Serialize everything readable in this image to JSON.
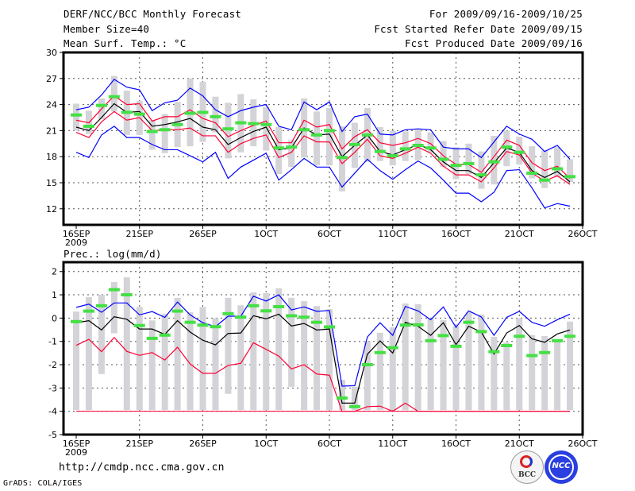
{
  "header": {
    "title": "DERF/NCC/BCC Monthly Forecast",
    "member_size": "Member Size=40",
    "variable": "Mean Surf. Temp.: °C",
    "period": "For 2009/09/16-2009/10/25",
    "start_date": "Fcst Started Refer Date 2009/09/15",
    "produced_date": "Fcst Produced Date 2009/09/16"
  },
  "footer": {
    "url": "http://cmdp.ncc.cma.gov.cn",
    "credit": "GrADS: COLA/IGES"
  },
  "logos": {
    "bcc": "BCC",
    "ncc": "NCC"
  },
  "colors": {
    "max_min": "#0000ff",
    "spread": "#ff0033",
    "mean": "#000000",
    "obs": "#44e044",
    "bars": "#d3d3d8"
  },
  "chart_data": [
    {
      "type": "line",
      "title": "Mean Surf. Temp.: °C",
      "xlabel": "",
      "ylabel": "",
      "ylim": [
        10.15,
        30
      ],
      "yticks": [
        12,
        15,
        18,
        21,
        24,
        27,
        30
      ],
      "xticks": [
        "16SEP",
        "21SEP",
        "26SEP",
        "1OCT",
        "6OCT",
        "11OCT",
        "16OCT",
        "21OCT",
        "26OCT"
      ],
      "xtick_year": "2009",
      "days": 40,
      "grid": true,
      "series": [
        {
          "name": "ensemble max",
          "color": "#0000ff",
          "values": [
            23.4,
            23.7,
            25.1,
            26.9,
            26.0,
            25.7,
            23.3,
            24.2,
            24.5,
            25.9,
            25.0,
            23.4,
            22.6,
            23.3,
            23.7,
            24.0,
            21.5,
            21.1,
            24.3,
            23.4,
            24.3,
            20.9,
            22.6,
            22.9,
            20.6,
            20.5,
            21.1,
            21.2,
            21.1,
            19.1,
            18.9,
            18.9,
            17.9,
            19.7,
            21.5,
            20.6,
            20.0,
            18.6,
            19.3,
            17.7
          ]
        },
        {
          "name": "ensemble min",
          "color": "#0000ff",
          "values": [
            18.5,
            17.9,
            20.5,
            21.5,
            20.2,
            20.2,
            19.4,
            18.8,
            18.8,
            18.1,
            17.4,
            18.5,
            15.5,
            16.8,
            17.6,
            18.4,
            15.3,
            16.5,
            17.8,
            16.8,
            16.8,
            14.5,
            16.1,
            17.7,
            16.4,
            15.4,
            16.5,
            17.5,
            16.7,
            15.3,
            13.8,
            13.8,
            12.8,
            13.9,
            16.4,
            16.5,
            14.4,
            12.1,
            12.6,
            12.3
          ]
        },
        {
          "name": "spread upper",
          "color": "#ff0033",
          "values": [
            22.2,
            21.9,
            23.5,
            25.0,
            24.0,
            24.1,
            22.1,
            22.6,
            22.6,
            23.4,
            22.4,
            21.9,
            20.3,
            21.0,
            21.6,
            22.1,
            19.6,
            19.6,
            22.2,
            21.4,
            21.7,
            18.9,
            20.3,
            21.1,
            19.6,
            19.3,
            19.6,
            20.1,
            19.5,
            18.1,
            17.1,
            17.1,
            16.2,
            18.0,
            19.9,
            19.3,
            17.3,
            16.4,
            16.9,
            15.5
          ]
        },
        {
          "name": "spread lower",
          "color": "#ff0033",
          "values": [
            20.8,
            20.2,
            22.0,
            23.2,
            22.2,
            22.5,
            21.0,
            21.1,
            21.1,
            21.3,
            20.4,
            20.4,
            18.5,
            19.5,
            20.1,
            20.5,
            17.9,
            18.5,
            20.4,
            19.7,
            19.7,
            17.2,
            18.5,
            20.0,
            18.1,
            17.8,
            18.4,
            19.1,
            18.4,
            16.9,
            15.9,
            15.9,
            15.1,
            16.7,
            18.6,
            18.2,
            16.1,
            15.2,
            15.8,
            14.8
          ]
        },
        {
          "name": "ensemble mean",
          "color": "#000000",
          "values": [
            21.4,
            21.0,
            22.5,
            24.1,
            23.1,
            23.2,
            21.5,
            21.7,
            22.0,
            22.4,
            21.4,
            21.1,
            19.4,
            20.2,
            20.9,
            21.4,
            18.8,
            19.0,
            21.3,
            20.5,
            20.6,
            18.0,
            19.3,
            20.5,
            18.6,
            18.2,
            18.8,
            19.4,
            18.8,
            17.4,
            16.4,
            16.4,
            15.6,
            17.3,
            19.0,
            18.5,
            16.4,
            15.6,
            16.3,
            15.1
          ]
        }
      ],
      "observed": [
        22.8,
        21.5,
        23.9,
        24.9,
        23.1,
        22.9,
        20.9,
        21.1,
        21.7,
        23.0,
        23.1,
        22.6,
        21.2,
        21.9,
        21.8,
        21.7,
        19.0,
        19.1,
        21.1,
        20.5,
        21.0,
        17.9,
        19.4,
        20.5,
        18.6,
        18.1,
        18.9,
        19.3,
        19.0,
        17.7,
        17.0,
        17.2,
        15.9,
        17.4,
        19.1,
        18.5,
        16.1,
        15.3,
        16.6,
        15.7
      ],
      "bars": [
        [
          21,
          24.1
        ],
        [
          20.6,
          23.3
        ],
        [
          22.3,
          24.7
        ],
        [
          23.2,
          27.3
        ],
        [
          20.5,
          25.6
        ],
        [
          20.5,
          24.4
        ],
        [
          18.8,
          22.2
        ],
        [
          18.4,
          22.9
        ],
        [
          19.1,
          24.3
        ],
        [
          19.2,
          27
        ],
        [
          19.7,
          26.6
        ],
        [
          20.8,
          24.9
        ],
        [
          17.8,
          24.2
        ],
        [
          18.5,
          25.2
        ],
        [
          19.2,
          24.6
        ],
        [
          18.7,
          23.7
        ],
        [
          16,
          21.4
        ],
        [
          16.8,
          19.9
        ],
        [
          17.9,
          24.7
        ],
        [
          17,
          23.2
        ],
        [
          17,
          23.6
        ],
        [
          14,
          21.5
        ],
        [
          16.7,
          21.9
        ],
        [
          17.4,
          23.6
        ],
        [
          17.5,
          21.4
        ],
        [
          17,
          21
        ],
        [
          17.5,
          20.9
        ],
        [
          17.6,
          21.1
        ],
        [
          18.5,
          20.8
        ],
        [
          16.8,
          19.8
        ],
        [
          15.4,
          19.1
        ],
        [
          16,
          19.5
        ],
        [
          14.3,
          18.6
        ],
        [
          14.8,
          20.4
        ],
        [
          16.9,
          21
        ],
        [
          17.1,
          20.3
        ],
        [
          15.5,
          19.2
        ],
        [
          14.4,
          18.7
        ],
        [
          15.6,
          19.1
        ],
        [
          15.1,
          17.7
        ]
      ]
    },
    {
      "type": "line",
      "title": "Prec.: log(mm/d)",
      "xlabel": "",
      "ylabel": "",
      "ylim": [
        -5,
        2.4
      ],
      "yticks": [
        -5,
        -4,
        -3,
        -2,
        -1,
        0,
        1,
        2
      ],
      "xticks": [
        "16SEP",
        "21SEP",
        "26SEP",
        "1OCT",
        "6OCT",
        "11OCT",
        "16OCT",
        "21OCT",
        "26OCT"
      ],
      "xtick_year": "2009",
      "days": 40,
      "grid": true,
      "floor": -4,
      "series": [
        {
          "name": "ensemble max",
          "color": "#0000ff",
          "values": [
            0.46,
            0.6,
            0.25,
            0.65,
            0.65,
            0.14,
            0.28,
            0.03,
            0.69,
            0.14,
            -0.2,
            -0.37,
            0.08,
            0.08,
            0.94,
            0.73,
            1.0,
            0.35,
            0.48,
            0.29,
            0.33,
            -2.92,
            -2.9,
            -0.81,
            -0.2,
            -0.74,
            0.5,
            0.31,
            -0.07,
            0.48,
            -0.4,
            0.31,
            0.05,
            -0.74,
            0.03,
            0.29,
            -0.18,
            -0.35,
            -0.07,
            0.17
          ]
        },
        {
          "name": "ensemble min",
          "color": "#ff0033",
          "values": [
            -1.17,
            -0.91,
            -1.44,
            -0.83,
            -1.43,
            -1.6,
            -1.48,
            -1.8,
            -1.25,
            -1.97,
            -2.37,
            -2.37,
            -2.03,
            -1.94,
            -1.06,
            -1.34,
            -1.63,
            -2.18,
            -2.0,
            -2.4,
            -2.45,
            -4,
            -4,
            -3.8,
            -3.78,
            -4,
            -3.65,
            -4,
            -4,
            -4,
            -4,
            -4,
            -4,
            -4,
            -4,
            -4,
            -4,
            -4,
            -4,
            -4
          ]
        },
        {
          "name": "ensemble mean",
          "color": "#000000",
          "values": [
            -0.2,
            -0.11,
            -0.51,
            0.06,
            -0.05,
            -0.47,
            -0.47,
            -0.7,
            -0.11,
            -0.6,
            -0.95,
            -1.15,
            -0.66,
            -0.64,
            0.1,
            -0.03,
            0.17,
            -0.34,
            -0.23,
            -0.51,
            -0.47,
            -3.65,
            -3.65,
            -1.55,
            -0.98,
            -1.5,
            -0.18,
            -0.35,
            -0.74,
            -0.2,
            -1.14,
            -0.35,
            -0.6,
            -1.54,
            -0.64,
            -0.32,
            -0.89,
            -1.04,
            -0.68,
            -0.51
          ]
        }
      ],
      "observed": [
        -0.15,
        0.3,
        0.53,
        1.22,
        1.0,
        -0.32,
        -0.87,
        -0.73,
        0.3,
        -0.18,
        -0.3,
        -0.37,
        0.19,
        0.04,
        0.53,
        0.31,
        0.49,
        0.1,
        0.04,
        -0.18,
        -0.38,
        -3.43,
        -3.8,
        -2.0,
        -1.48,
        -1.27,
        -0.3,
        -0.29,
        -0.97,
        -0.75,
        -1.21,
        -0.18,
        -0.58,
        -1.44,
        -1.18,
        -0.78,
        -1.61,
        -1.48,
        -0.97,
        -0.78
      ],
      "bars": [
        [
          -3.95,
          0.28
        ],
        [
          -3.95,
          0.9
        ],
        [
          -2.4,
          1.0
        ],
        [
          -0.65,
          1.55
        ],
        [
          -3.95,
          1.75
        ],
        [
          -3.95,
          0.48
        ],
        [
          -3.95,
          -0.1
        ],
        [
          -3.95,
          0.18
        ],
        [
          -3.95,
          0.87
        ],
        [
          -3.95,
          0.25
        ],
        [
          -3.95,
          0.48
        ],
        [
          -3.95,
          0
        ],
        [
          -3.25,
          0.87
        ],
        [
          -3.95,
          0.55
        ],
        [
          -3.95,
          1.1
        ],
        [
          -3.95,
          1.07
        ],
        [
          -3.95,
          1.28
        ],
        [
          -2.95,
          0.87
        ],
        [
          -3.95,
          0.73
        ],
        [
          -3.95,
          0.52
        ],
        [
          -3.95,
          0.38
        ],
        [
          -3.95,
          -2.65
        ],
        [
          -3.95,
          -2.95
        ],
        [
          -3.95,
          -1.0
        ],
        [
          -3.95,
          -0.63
        ],
        [
          -3.95,
          -0.4
        ],
        [
          -3.95,
          0.63
        ],
        [
          -3.95,
          0.6
        ],
        [
          -3.95,
          0
        ],
        [
          -3.95,
          -0.08
        ],
        [
          -3.95,
          -0.35
        ],
        [
          -3.95,
          0.25
        ],
        [
          -3.95,
          0.15
        ],
        [
          -3.95,
          -0.8
        ],
        [
          -3.95,
          -1.05
        ],
        [
          -3.95,
          0
        ],
        [
          -3.95,
          -0.73
        ],
        [
          -3.95,
          -0.77
        ],
        [
          -3.95,
          -0.95
        ],
        [
          -3.95,
          -0.15
        ]
      ]
    }
  ]
}
